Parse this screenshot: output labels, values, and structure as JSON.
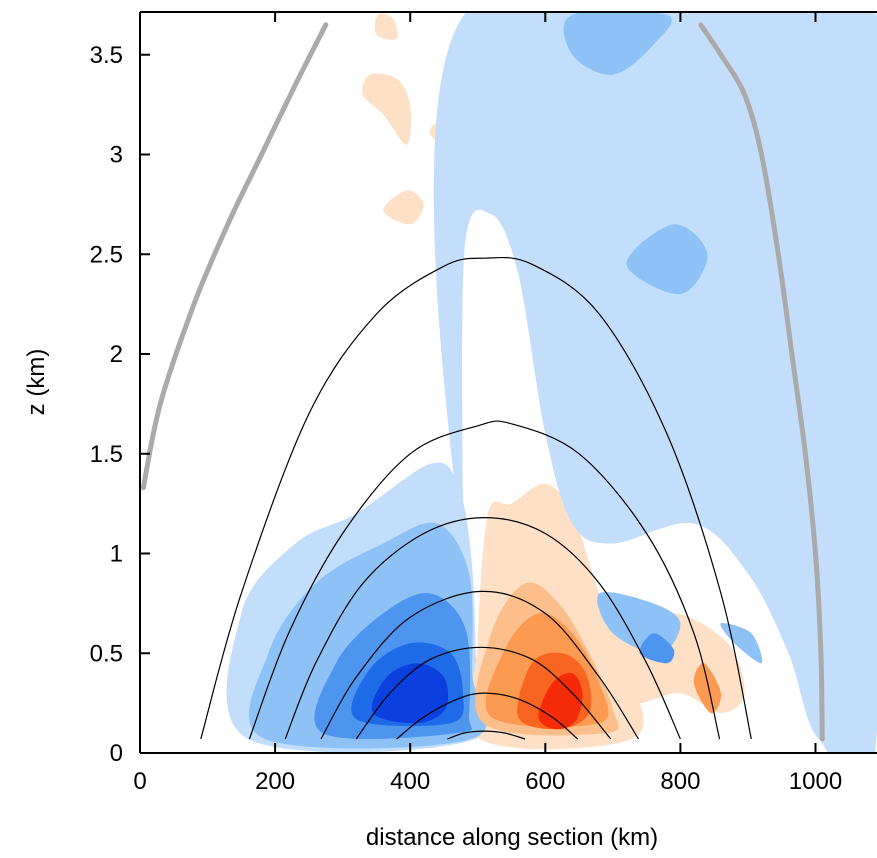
{
  "chart_data": {
    "type": "contour",
    "xlabel": "distance along section (km)",
    "ylabel": "z (km)",
    "xlim": [
      0,
      1090
    ],
    "ylim": [
      0,
      3.72
    ],
    "xticks": [
      0,
      200,
      400,
      600,
      800,
      1000
    ],
    "yticks": [
      0,
      0.5,
      1,
      1.5,
      2,
      2.5,
      3,
      3.5
    ],
    "xtick_labels": [
      "0",
      "200",
      "400",
      "600",
      "800",
      "1000"
    ],
    "ytick_labels": [
      "0",
      "0.5",
      "1",
      "1.5",
      "2",
      "2.5",
      "3",
      "3.5"
    ],
    "grid": false,
    "colors": {
      "blue_levels": [
        "#c2defa",
        "#8ec1f5",
        "#4d95ee",
        "#1f6ae6",
        "#0a3fe0"
      ],
      "orange_levels": [
        "#fde0c6",
        "#fcbe8a",
        "#fb9a50",
        "#f86520",
        "#f52a08"
      ],
      "contour_line": "#000000",
      "grey_line": "#aaaaaa"
    },
    "contour_lines": [
      {
        "level": 1,
        "points": [
          [
            90,
            0.07
          ],
          [
            150,
            0.8
          ],
          [
            250,
            1.7
          ],
          [
            350,
            2.2
          ],
          [
            450,
            2.44
          ],
          [
            510,
            2.48
          ],
          [
            580,
            2.45
          ],
          [
            680,
            2.2
          ],
          [
            780,
            1.6
          ],
          [
            860,
            0.8
          ],
          [
            905,
            0.07
          ]
        ]
      },
      {
        "level": 2,
        "points": [
          [
            162,
            0.07
          ],
          [
            220,
            0.6
          ],
          [
            300,
            1.1
          ],
          [
            400,
            1.5
          ],
          [
            500,
            1.64
          ],
          [
            550,
            1.65
          ],
          [
            650,
            1.5
          ],
          [
            750,
            1.1
          ],
          [
            820,
            0.6
          ],
          [
            858,
            0.07
          ]
        ]
      },
      {
        "level": 3,
        "points": [
          [
            215,
            0.07
          ],
          [
            260,
            0.45
          ],
          [
            330,
            0.85
          ],
          [
            420,
            1.1
          ],
          [
            510,
            1.18
          ],
          [
            600,
            1.1
          ],
          [
            680,
            0.85
          ],
          [
            750,
            0.45
          ],
          [
            800,
            0.07
          ]
        ]
      },
      {
        "level": 4,
        "points": [
          [
            268,
            0.07
          ],
          [
            320,
            0.38
          ],
          [
            400,
            0.68
          ],
          [
            505,
            0.81
          ],
          [
            600,
            0.7
          ],
          [
            680,
            0.38
          ],
          [
            738,
            0.07
          ]
        ]
      },
      {
        "level": 5,
        "points": [
          [
            320,
            0.07
          ],
          [
            370,
            0.3
          ],
          [
            430,
            0.47
          ],
          [
            505,
            0.53
          ],
          [
            580,
            0.47
          ],
          [
            640,
            0.3
          ],
          [
            697,
            0.07
          ]
        ]
      },
      {
        "level": 6,
        "points": [
          [
            380,
            0.07
          ],
          [
            420,
            0.18
          ],
          [
            470,
            0.27
          ],
          [
            510,
            0.3
          ],
          [
            560,
            0.27
          ],
          [
            610,
            0.18
          ],
          [
            648,
            0.07
          ]
        ]
      },
      {
        "level": 7,
        "points": [
          [
            455,
            0.07
          ],
          [
            480,
            0.1
          ],
          [
            510,
            0.11
          ],
          [
            540,
            0.1
          ],
          [
            570,
            0.07
          ]
        ]
      }
    ],
    "grey_lines": [
      {
        "points": [
          [
            5,
            1.33
          ],
          [
            30,
            1.75
          ],
          [
            80,
            2.25
          ],
          [
            130,
            2.65
          ],
          [
            180,
            3.0
          ],
          [
            230,
            3.35
          ],
          [
            275,
            3.65
          ]
        ]
      },
      {
        "points": [
          [
            830,
            3.65
          ],
          [
            860,
            3.5
          ],
          [
            895,
            3.3
          ],
          [
            920,
            3.0
          ],
          [
            945,
            2.5
          ],
          [
            965,
            2.0
          ],
          [
            985,
            1.5
          ],
          [
            1000,
            1.0
          ],
          [
            1008,
            0.5
          ],
          [
            1010,
            0.07
          ]
        ]
      }
    ],
    "filled_regions": [
      {
        "sign": "negative",
        "level": 1,
        "points": [
          [
            160,
            0.07
          ],
          [
            150,
            0.7
          ],
          [
            230,
            1.05
          ],
          [
            320,
            1.2
          ],
          [
            430,
            1.45
          ],
          [
            470,
            1.35
          ],
          [
            490,
            1.0
          ],
          [
            497,
            0.5
          ],
          [
            497,
            0.07
          ]
        ]
      },
      {
        "sign": "negative",
        "level": 2,
        "points": [
          [
            185,
            0.07
          ],
          [
            190,
            0.5
          ],
          [
            260,
            0.85
          ],
          [
            360,
            1.05
          ],
          [
            440,
            1.15
          ],
          [
            487,
            0.9
          ],
          [
            492,
            0.4
          ],
          [
            490,
            0.07
          ]
        ]
      },
      {
        "sign": "negative",
        "level": 3,
        "points": [
          [
            270,
            0.1
          ],
          [
            290,
            0.45
          ],
          [
            360,
            0.7
          ],
          [
            430,
            0.8
          ],
          [
            482,
            0.62
          ],
          [
            487,
            0.2
          ],
          [
            470,
            0.1
          ]
        ]
      },
      {
        "sign": "negative",
        "level": 4,
        "points": [
          [
            320,
            0.17
          ],
          [
            340,
            0.42
          ],
          [
            400,
            0.55
          ],
          [
            460,
            0.5
          ],
          [
            478,
            0.3
          ],
          [
            460,
            0.15
          ]
        ]
      },
      {
        "sign": "negative",
        "level": 5,
        "points": [
          [
            345,
            0.2
          ],
          [
            365,
            0.38
          ],
          [
            410,
            0.45
          ],
          [
            450,
            0.38
          ],
          [
            452,
            0.22
          ],
          [
            410,
            0.15
          ]
        ]
      },
      {
        "sign": "positive",
        "level": 1,
        "points": [
          [
            503,
            0.07
          ],
          [
            500,
            0.55
          ],
          [
            515,
            1.2
          ],
          [
            550,
            1.25
          ],
          [
            600,
            1.35
          ],
          [
            640,
            1.2
          ],
          [
            680,
            0.8
          ],
          [
            725,
            0.4
          ],
          [
            728,
            0.07
          ]
        ]
      },
      {
        "sign": "positive",
        "level": 2,
        "points": [
          [
            508,
            0.15
          ],
          [
            520,
            0.6
          ],
          [
            570,
            0.85
          ],
          [
            620,
            0.75
          ],
          [
            665,
            0.5
          ],
          [
            700,
            0.22
          ],
          [
            690,
            0.1
          ]
        ]
      },
      {
        "sign": "positive",
        "level": 3,
        "points": [
          [
            520,
            0.18
          ],
          [
            540,
            0.52
          ],
          [
            590,
            0.7
          ],
          [
            640,
            0.6
          ],
          [
            680,
            0.35
          ],
          [
            680,
            0.15
          ]
        ]
      },
      {
        "sign": "positive",
        "level": 4,
        "points": [
          [
            560,
            0.18
          ],
          [
            580,
            0.45
          ],
          [
            625,
            0.5
          ],
          [
            660,
            0.4
          ],
          [
            665,
            0.2
          ],
          [
            620,
            0.12
          ]
        ]
      },
      {
        "sign": "positive",
        "level": 5,
        "points": [
          [
            590,
            0.18
          ],
          [
            610,
            0.35
          ],
          [
            640,
            0.4
          ],
          [
            655,
            0.3
          ],
          [
            645,
            0.16
          ],
          [
            615,
            0.12
          ]
        ]
      },
      {
        "sign": "positive",
        "level": 1,
        "points": [
          [
            700,
            0.7
          ],
          [
            740,
            0.55
          ],
          [
            790,
            0.7
          ],
          [
            870,
            0.55
          ],
          [
            895,
            0.3
          ],
          [
            860,
            0.2
          ],
          [
            800,
            0.3
          ],
          [
            730,
            0.25
          ],
          [
            700,
            0.4
          ]
        ]
      },
      {
        "sign": "positive",
        "level": 3,
        "points": [
          [
            820,
            0.35
          ],
          [
            845,
            0.2
          ],
          [
            860,
            0.3
          ],
          [
            835,
            0.45
          ]
        ]
      },
      {
        "sign": "positive",
        "level": 1,
        "points": [
          [
            330,
            3.3
          ],
          [
            360,
            3.2
          ],
          [
            395,
            3.05
          ],
          [
            400,
            3.25
          ],
          [
            380,
            3.38
          ],
          [
            340,
            3.4
          ]
        ]
      },
      {
        "sign": "positive",
        "level": 1,
        "points": [
          [
            350,
            3.6
          ],
          [
            380,
            3.58
          ],
          [
            375,
            3.68
          ],
          [
            352,
            3.7
          ]
        ]
      },
      {
        "sign": "positive",
        "level": 1,
        "points": [
          [
            360,
            2.72
          ],
          [
            400,
            2.65
          ],
          [
            420,
            2.75
          ],
          [
            395,
            2.82
          ]
        ]
      },
      {
        "sign": "positive",
        "level": 1,
        "points": [
          [
            430,
            3.1
          ],
          [
            445,
            3.06
          ],
          [
            445,
            3.16
          ],
          [
            432,
            3.14
          ]
        ]
      },
      {
        "sign": "negative",
        "level": 1,
        "points": [
          [
            480,
            0.9
          ],
          [
            480,
            3.7
          ],
          [
            1090,
            3.7
          ],
          [
            1090,
            0.07
          ],
          [
            1005,
            0.07
          ],
          [
            960,
            0.5
          ],
          [
            900,
            0.9
          ],
          [
            820,
            1.15
          ],
          [
            700,
            1.05
          ],
          [
            640,
            1.15
          ],
          [
            600,
            1.6
          ],
          [
            560,
            2.4
          ],
          [
            520,
            2.7
          ],
          [
            480,
            2.5
          ]
        ]
      },
      {
        "sign": "negative",
        "level": 2,
        "points": [
          [
            640,
            3.5
          ],
          [
            700,
            3.4
          ],
          [
            760,
            3.55
          ],
          [
            780,
            3.7
          ],
          [
            640,
            3.7
          ]
        ]
      },
      {
        "sign": "negative",
        "level": 2,
        "points": [
          [
            720,
            2.45
          ],
          [
            800,
            2.3
          ],
          [
            840,
            2.5
          ],
          [
            790,
            2.65
          ]
        ]
      },
      {
        "sign": "negative",
        "level": 2,
        "points": [
          [
            680,
            0.8
          ],
          [
            700,
            0.6
          ],
          [
            770,
            0.5
          ],
          [
            800,
            0.65
          ],
          [
            760,
            0.75
          ]
        ]
      },
      {
        "sign": "negative",
        "level": 3,
        "points": [
          [
            740,
            0.5
          ],
          [
            780,
            0.45
          ],
          [
            790,
            0.52
          ],
          [
            760,
            0.6
          ]
        ]
      },
      {
        "sign": "negative",
        "level": 2,
        "points": [
          [
            860,
            0.65
          ],
          [
            880,
            0.55
          ],
          [
            920,
            0.45
          ],
          [
            905,
            0.6
          ]
        ]
      }
    ]
  }
}
